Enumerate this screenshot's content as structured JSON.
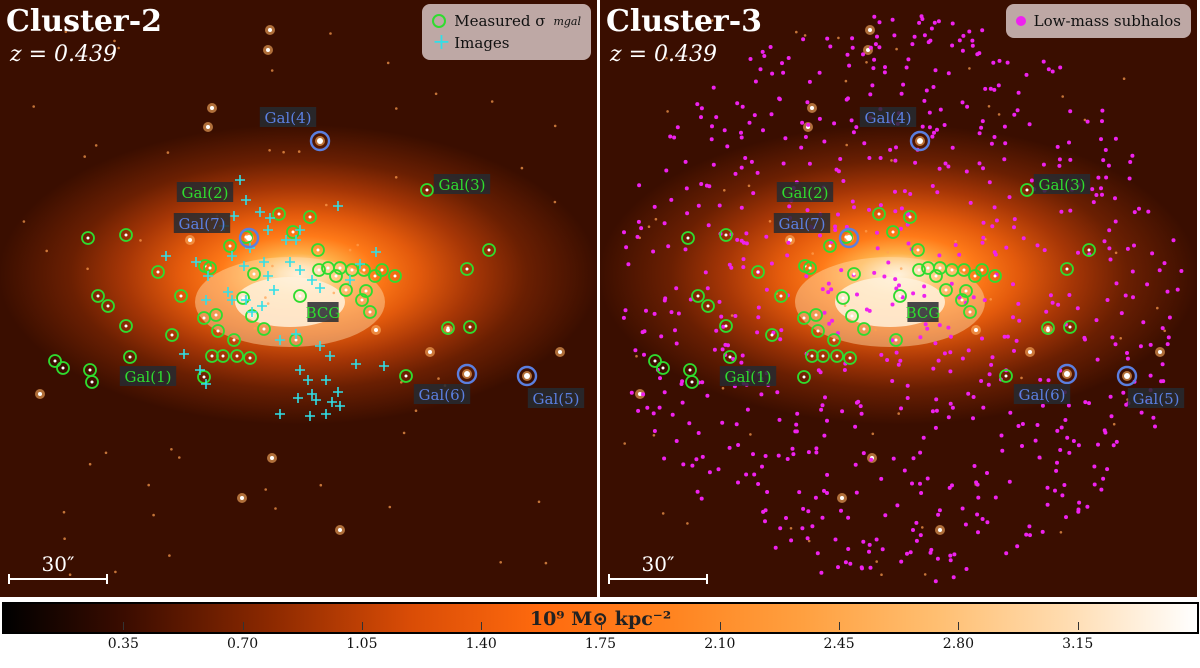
{
  "left_panel": {
    "title": "Cluster-2",
    "redshift": "z = 0.439",
    "legend": {
      "measured": "Measured σ",
      "images": "Images"
    },
    "scale": "30″",
    "labels": {
      "gal1": "Gal(1)",
      "gal2": "Gal(2)",
      "gal3": "Gal(3)",
      "gal4": "Gal(4)",
      "gal5": "Gal(5)",
      "gal6": "Gal(6)",
      "gal7": "Gal(7)",
      "bcg": "BCG"
    }
  },
  "right_panel": {
    "title": "Cluster-3",
    "redshift": "z = 0.439",
    "legend": {
      "subhalos": "Low-mass subhalos"
    },
    "scale": "30″",
    "labels": {
      "gal1": "Gal(1)",
      "gal2": "Gal(2)",
      "gal3": "Gal(3)",
      "gal4": "Gal(4)",
      "gal5": "Gal(5)",
      "gal6": "Gal(6)",
      "gal7": "Gal(7)",
      "bcg": "BCG"
    }
  },
  "colorbar": {
    "title": "10⁹ M⊙ kpc⁻²",
    "ticks": [
      "0.35",
      "0.70",
      "1.05",
      "1.40",
      "1.75",
      "2.10",
      "2.45",
      "2.80",
      "3.15"
    ],
    "range": [
      0,
      3.5
    ]
  },
  "colors": {
    "measured": "#2fdc2f",
    "images": "#30e0e8",
    "subhalos": "#ee22ee",
    "highlight": "#5b7fe0"
  }
}
